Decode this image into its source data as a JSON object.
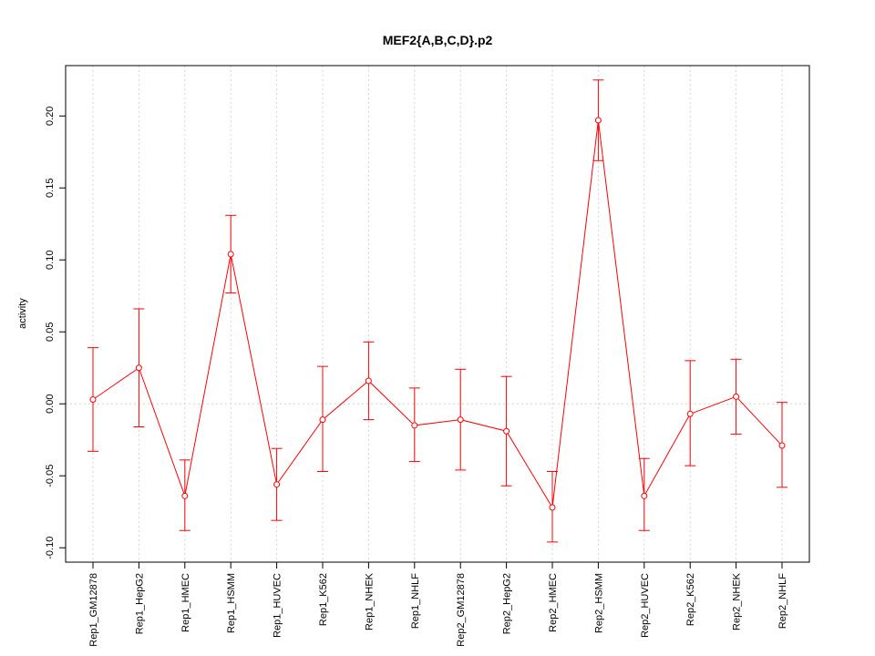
{
  "chart_data": {
    "type": "line",
    "title": "MEF2{A,B,C,D}.p2",
    "xlabel": "",
    "ylabel": "activity",
    "ylim": [
      -0.11,
      0.235
    ],
    "yticks": [
      -0.1,
      -0.05,
      0.0,
      0.05,
      0.1,
      0.15,
      0.2
    ],
    "ytick_labels": [
      "-0.10",
      "-0.05",
      "0.00",
      "0.05",
      "0.10",
      "0.15",
      "0.20"
    ],
    "grid": true,
    "series_color": "#ff0000",
    "grid_color": "#d3d3d3",
    "categories": [
      "Rep1_GM12878",
      "Rep1_HepG2",
      "Rep1_HMEC",
      "Rep1_HSMM",
      "Rep1_HUVEC",
      "Rep1_K562",
      "Rep1_NHEK",
      "Rep1_NHLF",
      "Rep2_GM12878",
      "Rep2_HepG2",
      "Rep2_HMEC",
      "Rep2_HSMM",
      "Rep2_HUVEC",
      "Rep2_K562",
      "Rep2_NHEK",
      "Rep2_NHLF"
    ],
    "series": [
      {
        "values": [
          0.003,
          0.025,
          -0.064,
          0.104,
          -0.056,
          -0.011,
          0.016,
          -0.015,
          -0.011,
          -0.019,
          -0.072,
          0.197,
          -0.064,
          -0.007,
          0.005,
          -0.029
        ],
        "lower": [
          -0.033,
          -0.016,
          -0.088,
          0.077,
          -0.081,
          -0.047,
          -0.011,
          -0.04,
          -0.046,
          -0.057,
          -0.096,
          0.169,
          -0.088,
          -0.043,
          -0.021,
          -0.058
        ],
        "upper": [
          0.039,
          0.066,
          -0.039,
          0.131,
          -0.031,
          0.026,
          0.043,
          0.011,
          0.024,
          0.019,
          -0.047,
          0.225,
          -0.038,
          0.03,
          0.031,
          0.001
        ]
      }
    ]
  }
}
